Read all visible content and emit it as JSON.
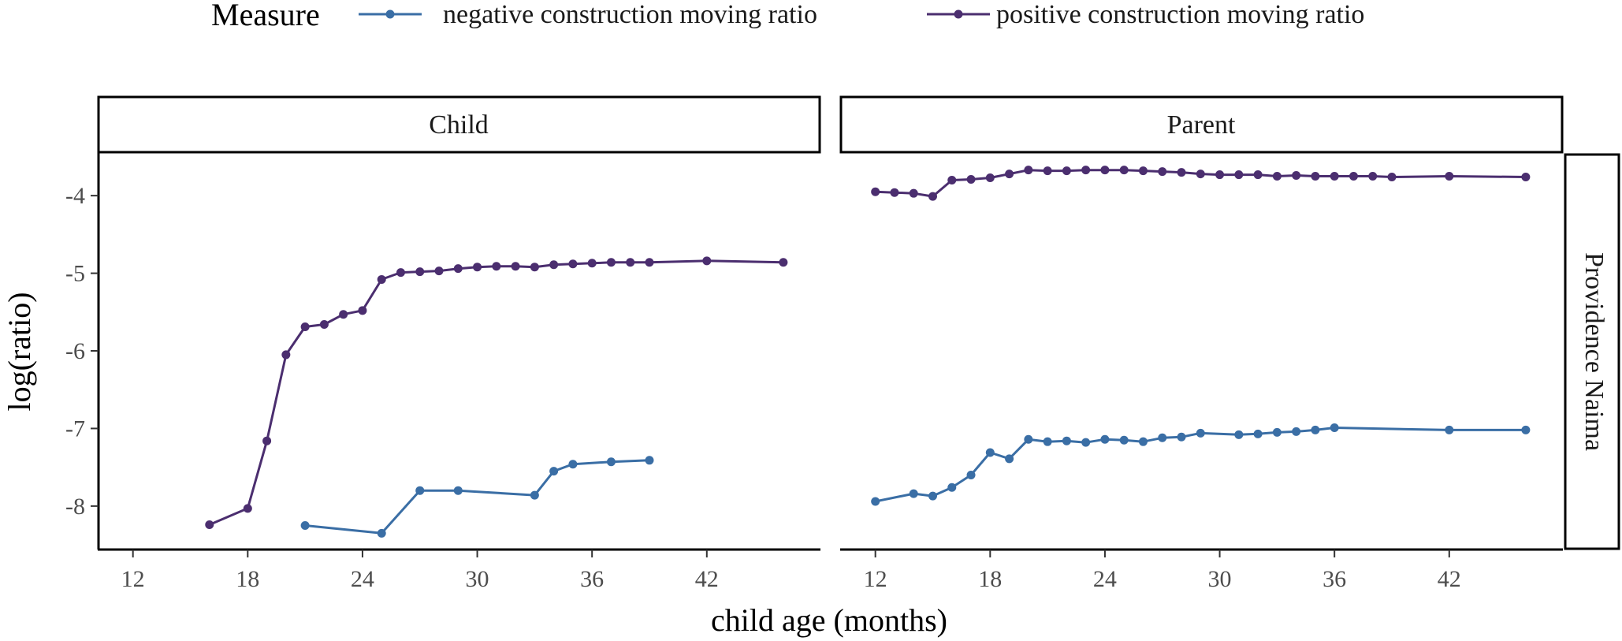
{
  "legend": {
    "title": "Measure",
    "items": [
      {
        "label": "negative construction moving ratio",
        "color": "#3A6EA5"
      },
      {
        "label": "positive construction moving ratio",
        "color": "#4B2E6F"
      }
    ]
  },
  "axes": {
    "xlabel": "child age (months)",
    "ylabel": "log(ratio)"
  },
  "row_label": "Providence Naima",
  "chart_data": {
    "type": "line",
    "facet_labels": [
      "Child",
      "Parent"
    ],
    "row_label": "Providence Naima",
    "xlabel": "child age (months)",
    "ylabel": "log(ratio)",
    "xlim": [
      10.2,
      47.9
    ],
    "ylim": [
      -8.56,
      -3.45
    ],
    "xticks": [
      12,
      18,
      24,
      30,
      36,
      42
    ],
    "yticks": [
      -4,
      -5,
      -6,
      -7,
      -8
    ],
    "legend_title": "Measure",
    "legend_position": "top",
    "panels": [
      {
        "label": "Child",
        "series": [
          {
            "name": "negative construction moving ratio",
            "color": "#3A6EA5",
            "x": [
              21,
              25,
              27,
              29,
              33,
              34,
              35,
              37,
              39
            ],
            "y": [
              -8.25,
              -8.35,
              -7.8,
              -7.8,
              -7.86,
              -7.55,
              -7.46,
              -7.43,
              -7.41
            ]
          },
          {
            "name": "positive construction moving ratio",
            "color": "#4B2E6F",
            "x": [
              16,
              18,
              19,
              20,
              21,
              22,
              23,
              24,
              25,
              26,
              27,
              28,
              29,
              30,
              31,
              32,
              33,
              34,
              35,
              36,
              37,
              38,
              39,
              42,
              46
            ],
            "y": [
              -8.24,
              -8.03,
              -7.16,
              -6.05,
              -5.69,
              -5.66,
              -5.53,
              -5.48,
              -5.08,
              -4.99,
              -4.98,
              -4.97,
              -4.94,
              -4.92,
              -4.91,
              -4.91,
              -4.92,
              -4.89,
              -4.88,
              -4.87,
              -4.86,
              -4.86,
              -4.86,
              -4.84,
              -4.86
            ]
          }
        ]
      },
      {
        "label": "Parent",
        "series": [
          {
            "name": "negative construction moving ratio",
            "color": "#3A6EA5",
            "x": [
              12,
              14,
              15,
              16,
              17,
              18,
              19,
              20,
              21,
              22,
              23,
              24,
              25,
              26,
              27,
              28,
              29,
              31,
              32,
              33,
              34,
              35,
              36,
              42,
              46
            ],
            "y": [
              -7.94,
              -7.84,
              -7.87,
              -7.76,
              -7.6,
              -7.31,
              -7.39,
              -7.14,
              -7.17,
              -7.16,
              -7.18,
              -7.14,
              -7.15,
              -7.17,
              -7.12,
              -7.11,
              -7.06,
              -7.08,
              -7.07,
              -7.05,
              -7.04,
              -7.02,
              -6.99,
              -7.02,
              -7.02
            ]
          },
          {
            "name": "positive construction moving ratio",
            "color": "#4B2E6F",
            "x": [
              12,
              13,
              14,
              15,
              16,
              17,
              18,
              19,
              20,
              21,
              22,
              23,
              24,
              25,
              26,
              27,
              28,
              29,
              30,
              31,
              32,
              33,
              34,
              35,
              36,
              37,
              38,
              39,
              42,
              46
            ],
            "y": [
              -3.95,
              -3.96,
              -3.97,
              -4.01,
              -3.8,
              -3.79,
              -3.77,
              -3.72,
              -3.67,
              -3.68,
              -3.68,
              -3.67,
              -3.67,
              -3.67,
              -3.68,
              -3.69,
              -3.7,
              -3.72,
              -3.73,
              -3.73,
              -3.73,
              -3.75,
              -3.74,
              -3.75,
              -3.75,
              -3.75,
              -3.75,
              -3.76,
              -3.75,
              -3.76
            ]
          }
        ]
      }
    ]
  }
}
